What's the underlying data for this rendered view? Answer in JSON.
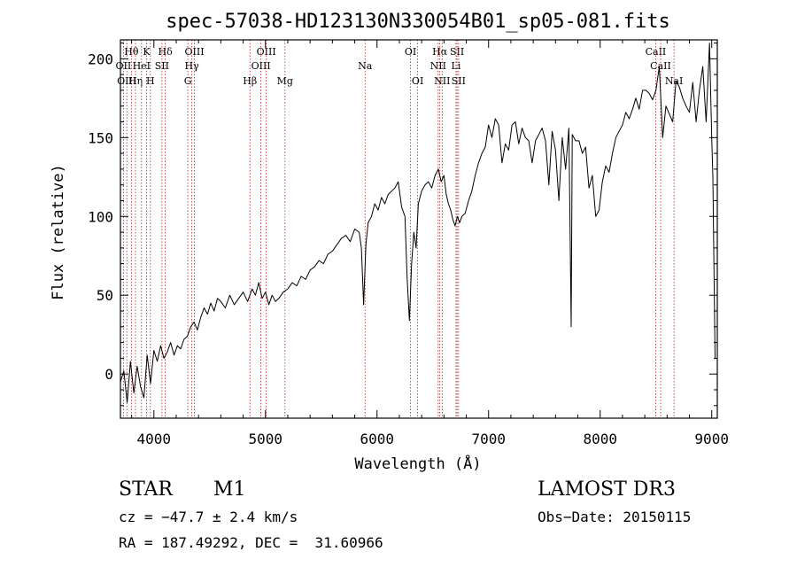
{
  "chart_data": {
    "type": "line",
    "title": "spec-57038-HD123130N330054B01_sp05-081.fits",
    "xlabel": "Wavelength (Å)",
    "ylabel": "Flux (relative)",
    "xlim": [
      3700,
      9050
    ],
    "ylim": [
      -28,
      212
    ],
    "x_ticks": [
      4000,
      5000,
      6000,
      7000,
      8000,
      9000
    ],
    "y_ticks": [
      0,
      50,
      100,
      150,
      200
    ],
    "grid": false,
    "series": [
      {
        "color": "#000000",
        "x": [
          3700,
          3730,
          3760,
          3790,
          3820,
          3850,
          3880,
          3910,
          3940,
          3970,
          4000,
          4030,
          4060,
          4090,
          4120,
          4150,
          4180,
          4210,
          4240,
          4270,
          4300,
          4330,
          4360,
          4390,
          4420,
          4450,
          4480,
          4510,
          4540,
          4570,
          4600,
          4640,
          4680,
          4720,
          4760,
          4800,
          4840,
          4880,
          4910,
          4940,
          4970,
          5000,
          5030,
          5060,
          5090,
          5120,
          5160,
          5200,
          5240,
          5280,
          5320,
          5360,
          5400,
          5440,
          5480,
          5520,
          5560,
          5600,
          5640,
          5680,
          5720,
          5760,
          5800,
          5840,
          5860,
          5880,
          5900,
          5920,
          5950,
          5980,
          6010,
          6040,
          6070,
          6100,
          6130,
          6160,
          6190,
          6220,
          6250,
          6270,
          6290,
          6310,
          6330,
          6350,
          6370,
          6400,
          6430,
          6460,
          6490,
          6520,
          6550,
          6575,
          6600,
          6620,
          6640,
          6660,
          6680,
          6700,
          6720,
          6740,
          6760,
          6790,
          6820,
          6850,
          6880,
          6910,
          6940,
          6970,
          7000,
          7030,
          7060,
          7090,
          7120,
          7150,
          7180,
          7210,
          7240,
          7270,
          7300,
          7330,
          7360,
          7390,
          7420,
          7450,
          7480,
          7510,
          7540,
          7570,
          7600,
          7630,
          7660,
          7690,
          7720,
          7740,
          7750,
          7780,
          7810,
          7840,
          7870,
          7900,
          7930,
          7960,
          7990,
          8020,
          8050,
          8080,
          8110,
          8140,
          8170,
          8200,
          8230,
          8260,
          8290,
          8320,
          8350,
          8380,
          8410,
          8440,
          8470,
          8500,
          8530,
          8560,
          8590,
          8620,
          8650,
          8680,
          8710,
          8740,
          8770,
          8800,
          8830,
          8860,
          8890,
          8920,
          8950,
          8980,
          9000,
          9010,
          9030
        ],
        "y": [
          -5,
          2,
          -18,
          8,
          -12,
          5,
          -8,
          -15,
          12,
          -6,
          15,
          8,
          18,
          10,
          14,
          20,
          12,
          18,
          16,
          22,
          24,
          30,
          33,
          28,
          36,
          42,
          38,
          45,
          40,
          48,
          46,
          42,
          50,
          44,
          48,
          52,
          46,
          54,
          50,
          58,
          48,
          52,
          44,
          50,
          46,
          48,
          52,
          54,
          58,
          56,
          62,
          60,
          66,
          68,
          72,
          70,
          76,
          78,
          82,
          86,
          88,
          84,
          92,
          90,
          80,
          44,
          82,
          96,
          100,
          108,
          104,
          112,
          108,
          114,
          116,
          118,
          122,
          106,
          100,
          60,
          34,
          70,
          90,
          80,
          108,
          116,
          120,
          122,
          118,
          126,
          130,
          122,
          126,
          114,
          108,
          104,
          98,
          94,
          100,
          96,
          100,
          102,
          110,
          116,
          126,
          134,
          140,
          144,
          158,
          150,
          162,
          158,
          134,
          146,
          142,
          158,
          160,
          146,
          156,
          150,
          148,
          134,
          148,
          152,
          156,
          148,
          120,
          154,
          142,
          110,
          150,
          130,
          156,
          30,
          152,
          148,
          148,
          140,
          144,
          118,
          126,
          100,
          104,
          122,
          132,
          128,
          140,
          150,
          154,
          158,
          166,
          162,
          168,
          175,
          168,
          180,
          180,
          178,
          174,
          180,
          195,
          150,
          170,
          165,
          160,
          186,
          182,
          175,
          170,
          166,
          185,
          160,
          180,
          195,
          160,
          210,
          150,
          125,
          10
        ]
      }
    ],
    "line_markers": [
      {
        "label": "Hθ",
        "wavelength": 3798,
        "row": 0
      },
      {
        "label": "OII",
        "wavelength": 3727,
        "row": 1
      },
      {
        "label": "OIII",
        "wavelength": 3757,
        "row": 2
      },
      {
        "label": "Hη",
        "wavelength": 3835,
        "row": 2
      },
      {
        "label": "HeI",
        "wavelength": 3889,
        "row": 1
      },
      {
        "label": "K",
        "wavelength": 3934,
        "row": 0
      },
      {
        "label": "H",
        "wavelength": 3968,
        "row": 2
      },
      {
        "label": "SII",
        "wavelength": 4072,
        "row": 1
      },
      {
        "label": "Hδ",
        "wavelength": 4102,
        "row": 0
      },
      {
        "label": "OIII",
        "wavelength": 4363,
        "row": 0
      },
      {
        "label": "Hγ",
        "wavelength": 4340,
        "row": 1
      },
      {
        "label": "G",
        "wavelength": 4304,
        "row": 2
      },
      {
        "label": "Hβ",
        "wavelength": 4861,
        "row": 2
      },
      {
        "label": "OIII",
        "wavelength": 4959,
        "row": 1
      },
      {
        "label": "OIII",
        "wavelength": 5007,
        "row": 0
      },
      {
        "label": "Mg",
        "wavelength": 5175,
        "row": 2
      },
      {
        "label": "Na",
        "wavelength": 5893,
        "row": 1
      },
      {
        "label": "OI",
        "wavelength": 6300,
        "row": 0
      },
      {
        "label": "OI",
        "wavelength": 6364,
        "row": 2
      },
      {
        "label": "Hα",
        "wavelength": 6563,
        "row": 0
      },
      {
        "label": "NII",
        "wavelength": 6548,
        "row": 1
      },
      {
        "label": "NII",
        "wavelength": 6584,
        "row": 2
      },
      {
        "label": "SII",
        "wavelength": 6717,
        "row": 0
      },
      {
        "label": "Li",
        "wavelength": 6708,
        "row": 1
      },
      {
        "label": "SII",
        "wavelength": 6731,
        "row": 2
      },
      {
        "label": "CaII",
        "wavelength": 8498,
        "row": 0
      },
      {
        "label": "CaII",
        "wavelength": 8542,
        "row": 1
      },
      {
        "label": "NaI",
        "wavelength": 8662,
        "row": 2
      }
    ]
  },
  "info": {
    "object_class": "STAR",
    "subclass": "M1",
    "survey": "LAMOST DR3",
    "cz": "cz = −47.7 ± 2.4 km/s",
    "obs_date": "Obs−Date: 20150115",
    "coords": "RA = 187.49292, DEC =  31.60966"
  }
}
